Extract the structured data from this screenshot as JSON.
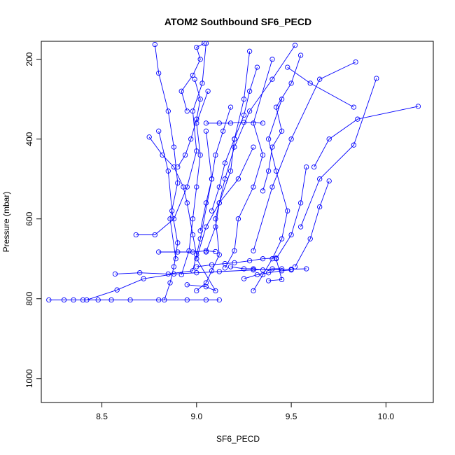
{
  "chart_data": {
    "type": "line",
    "title": "ATOM2 Southbound SF6_PECD",
    "xlabel": "SF6_PECD",
    "ylabel": "Pressure (mbar)",
    "xlim": [
      8.18,
      10.25
    ],
    "ylim": [
      1060,
      155
    ],
    "y_reversed": true,
    "x_ticks": [
      8.5,
      9.0,
      9.5,
      10.0
    ],
    "x_tick_labels": [
      "8.5",
      "9.0",
      "9.5",
      "10.0"
    ],
    "y_ticks": [
      200,
      400,
      600,
      800,
      1000
    ],
    "y_tick_labels": [
      "200",
      "400",
      "600",
      "800",
      "1000"
    ],
    "grid": false,
    "legend": "none",
    "color": "#0000ff",
    "marker": "open-circle",
    "series": [
      {
        "x": [
          8.22,
          8.3,
          8.35,
          8.4,
          8.48,
          8.55,
          8.65,
          8.8,
          8.95,
          9.05,
          9.12
        ],
        "y": [
          803,
          803,
          803,
          803,
          803,
          803,
          803,
          803,
          803,
          803,
          803
        ]
      },
      {
        "x": [
          8.42,
          8.58,
          8.72,
          8.88,
          9.0,
          9.12,
          9.3,
          9.5,
          9.58
        ],
        "y": [
          803,
          778,
          750,
          738,
          735,
          732,
          728,
          726,
          725
        ]
      },
      {
        "x": [
          8.57,
          8.7,
          8.85,
          8.98,
          9.02,
          9.08,
          9.05
        ],
        "y": [
          738,
          735,
          738,
          730,
          650,
          500,
          380
        ]
      },
      {
        "x": [
          8.68,
          8.78,
          8.88,
          8.95,
          9.0,
          8.98,
          9.03,
          9.05
        ],
        "y": [
          640,
          640,
          600,
          520,
          430,
          330,
          260,
          160
        ]
      },
      {
        "x": [
          8.78,
          8.8,
          8.85,
          8.88,
          8.9,
          8.86,
          8.89
        ],
        "y": [
          163,
          235,
          330,
          420,
          510,
          600,
          700
        ]
      },
      {
        "x": [
          8.75,
          8.82,
          8.88,
          8.93,
          8.95,
          8.98,
          9.0
        ],
        "y": [
          395,
          440,
          470,
          520,
          560,
          640,
          690
        ]
      },
      {
        "x": [
          9.0,
          9.05,
          9.08,
          9.12,
          9.1,
          9.15,
          9.2,
          9.28,
          9.4,
          9.52
        ],
        "y": [
          780,
          760,
          730,
          690,
          600,
          500,
          420,
          330,
          250,
          165
        ]
      },
      {
        "x": [
          9.3,
          9.35,
          9.4,
          9.45,
          9.48,
          9.42,
          9.38,
          9.45
        ],
        "y": [
          780,
          740,
          700,
          650,
          580,
          480,
          400,
          300
        ]
      },
      {
        "x": [
          9.52,
          9.6,
          9.65,
          9.7
        ],
        "y": [
          720,
          650,
          570,
          505
        ]
      },
      {
        "x": [
          9.62,
          9.7,
          9.85,
          10.17
        ],
        "y": [
          470,
          400,
          350,
          318
        ]
      },
      {
        "x": [
          9.48,
          9.6,
          9.83
        ],
        "y": [
          220,
          260,
          320
        ]
      },
      {
        "x": [
          9.55,
          9.65,
          9.83,
          9.95
        ],
        "y": [
          620,
          500,
          415,
          248
        ]
      },
      {
        "x": [
          9.3,
          9.4,
          9.5,
          9.65,
          9.84
        ],
        "y": [
          680,
          520,
          400,
          250,
          207
        ]
      },
      {
        "x": [
          9.15,
          9.2,
          9.22,
          9.3,
          9.35,
          9.3,
          9.4
        ],
        "y": [
          723,
          680,
          600,
          520,
          440,
          360,
          200
        ]
      },
      {
        "x": [
          9.05,
          9.1,
          9.12,
          9.18,
          9.2,
          9.25,
          9.28
        ],
        "y": [
          683,
          620,
          560,
          480,
          400,
          300,
          180
        ]
      },
      {
        "x": [
          8.92,
          8.96,
          8.98,
          9.0,
          9.02,
          9.0,
          9.06
        ],
        "y": [
          740,
          680,
          600,
          520,
          440,
          360,
          280
        ]
      },
      {
        "x": [
          8.83,
          8.86,
          8.88,
          8.9,
          8.87,
          8.85,
          8.8
        ],
        "y": [
          803,
          760,
          720,
          660,
          580,
          480,
          380
        ]
      },
      {
        "x": [
          9.05,
          9.12,
          9.18,
          9.25,
          9.35
        ],
        "y": [
          360,
          360,
          360,
          358,
          360
        ]
      },
      {
        "x": [
          9.25,
          9.32,
          9.38,
          9.45,
          9.5
        ],
        "y": [
          750,
          740,
          735,
          730,
          728
        ]
      },
      {
        "x": [
          9.38,
          9.45,
          9.42,
          9.5,
          9.55,
          9.58
        ],
        "y": [
          755,
          752,
          700,
          640,
          560,
          470
        ]
      },
      {
        "x": [
          8.95,
          9.05,
          9.1,
          9.0,
          9.05,
          9.12,
          9.22,
          9.3
        ],
        "y": [
          765,
          770,
          780,
          700,
          620,
          560,
          500,
          420
        ]
      },
      {
        "x": [
          9.08,
          9.12,
          9.15,
          9.2,
          9.25,
          9.28,
          9.32
        ],
        "y": [
          580,
          520,
          460,
          400,
          340,
          280,
          220
        ]
      },
      {
        "x": [
          9.35,
          9.38,
          9.4,
          9.45,
          9.42,
          9.5,
          9.55
        ],
        "y": [
          530,
          480,
          420,
          380,
          320,
          260,
          190
        ]
      },
      {
        "x": [
          8.95,
          8.92,
          8.98,
          9.02,
          9.0,
          9.04
        ],
        "y": [
          330,
          280,
          240,
          200,
          170,
          160
        ]
      },
      {
        "x": [
          9.0,
          9.08,
          9.15,
          9.2,
          9.28,
          9.35,
          9.42
        ],
        "y": [
          720,
          715,
          712,
          710,
          705,
          700,
          698
        ]
      },
      {
        "x": [
          8.8,
          8.9,
          8.98,
          9.05,
          9.1
        ],
        "y": [
          683,
          683,
          683,
          680,
          682
        ]
      },
      {
        "x": [
          9.18,
          9.25,
          9.3,
          9.35,
          9.4,
          9.45
        ],
        "y": [
          720,
          725,
          725,
          728,
          725,
          725
        ]
      },
      {
        "x": [
          8.9,
          8.94,
          8.97,
          9.0,
          9.02,
          8.99
        ],
        "y": [
          470,
          440,
          400,
          350,
          300,
          250
        ]
      },
      {
        "x": [
          9.02,
          9.05,
          9.08,
          9.1,
          9.14,
          9.18
        ],
        "y": [
          630,
          560,
          500,
          440,
          380,
          320
        ]
      }
    ]
  }
}
